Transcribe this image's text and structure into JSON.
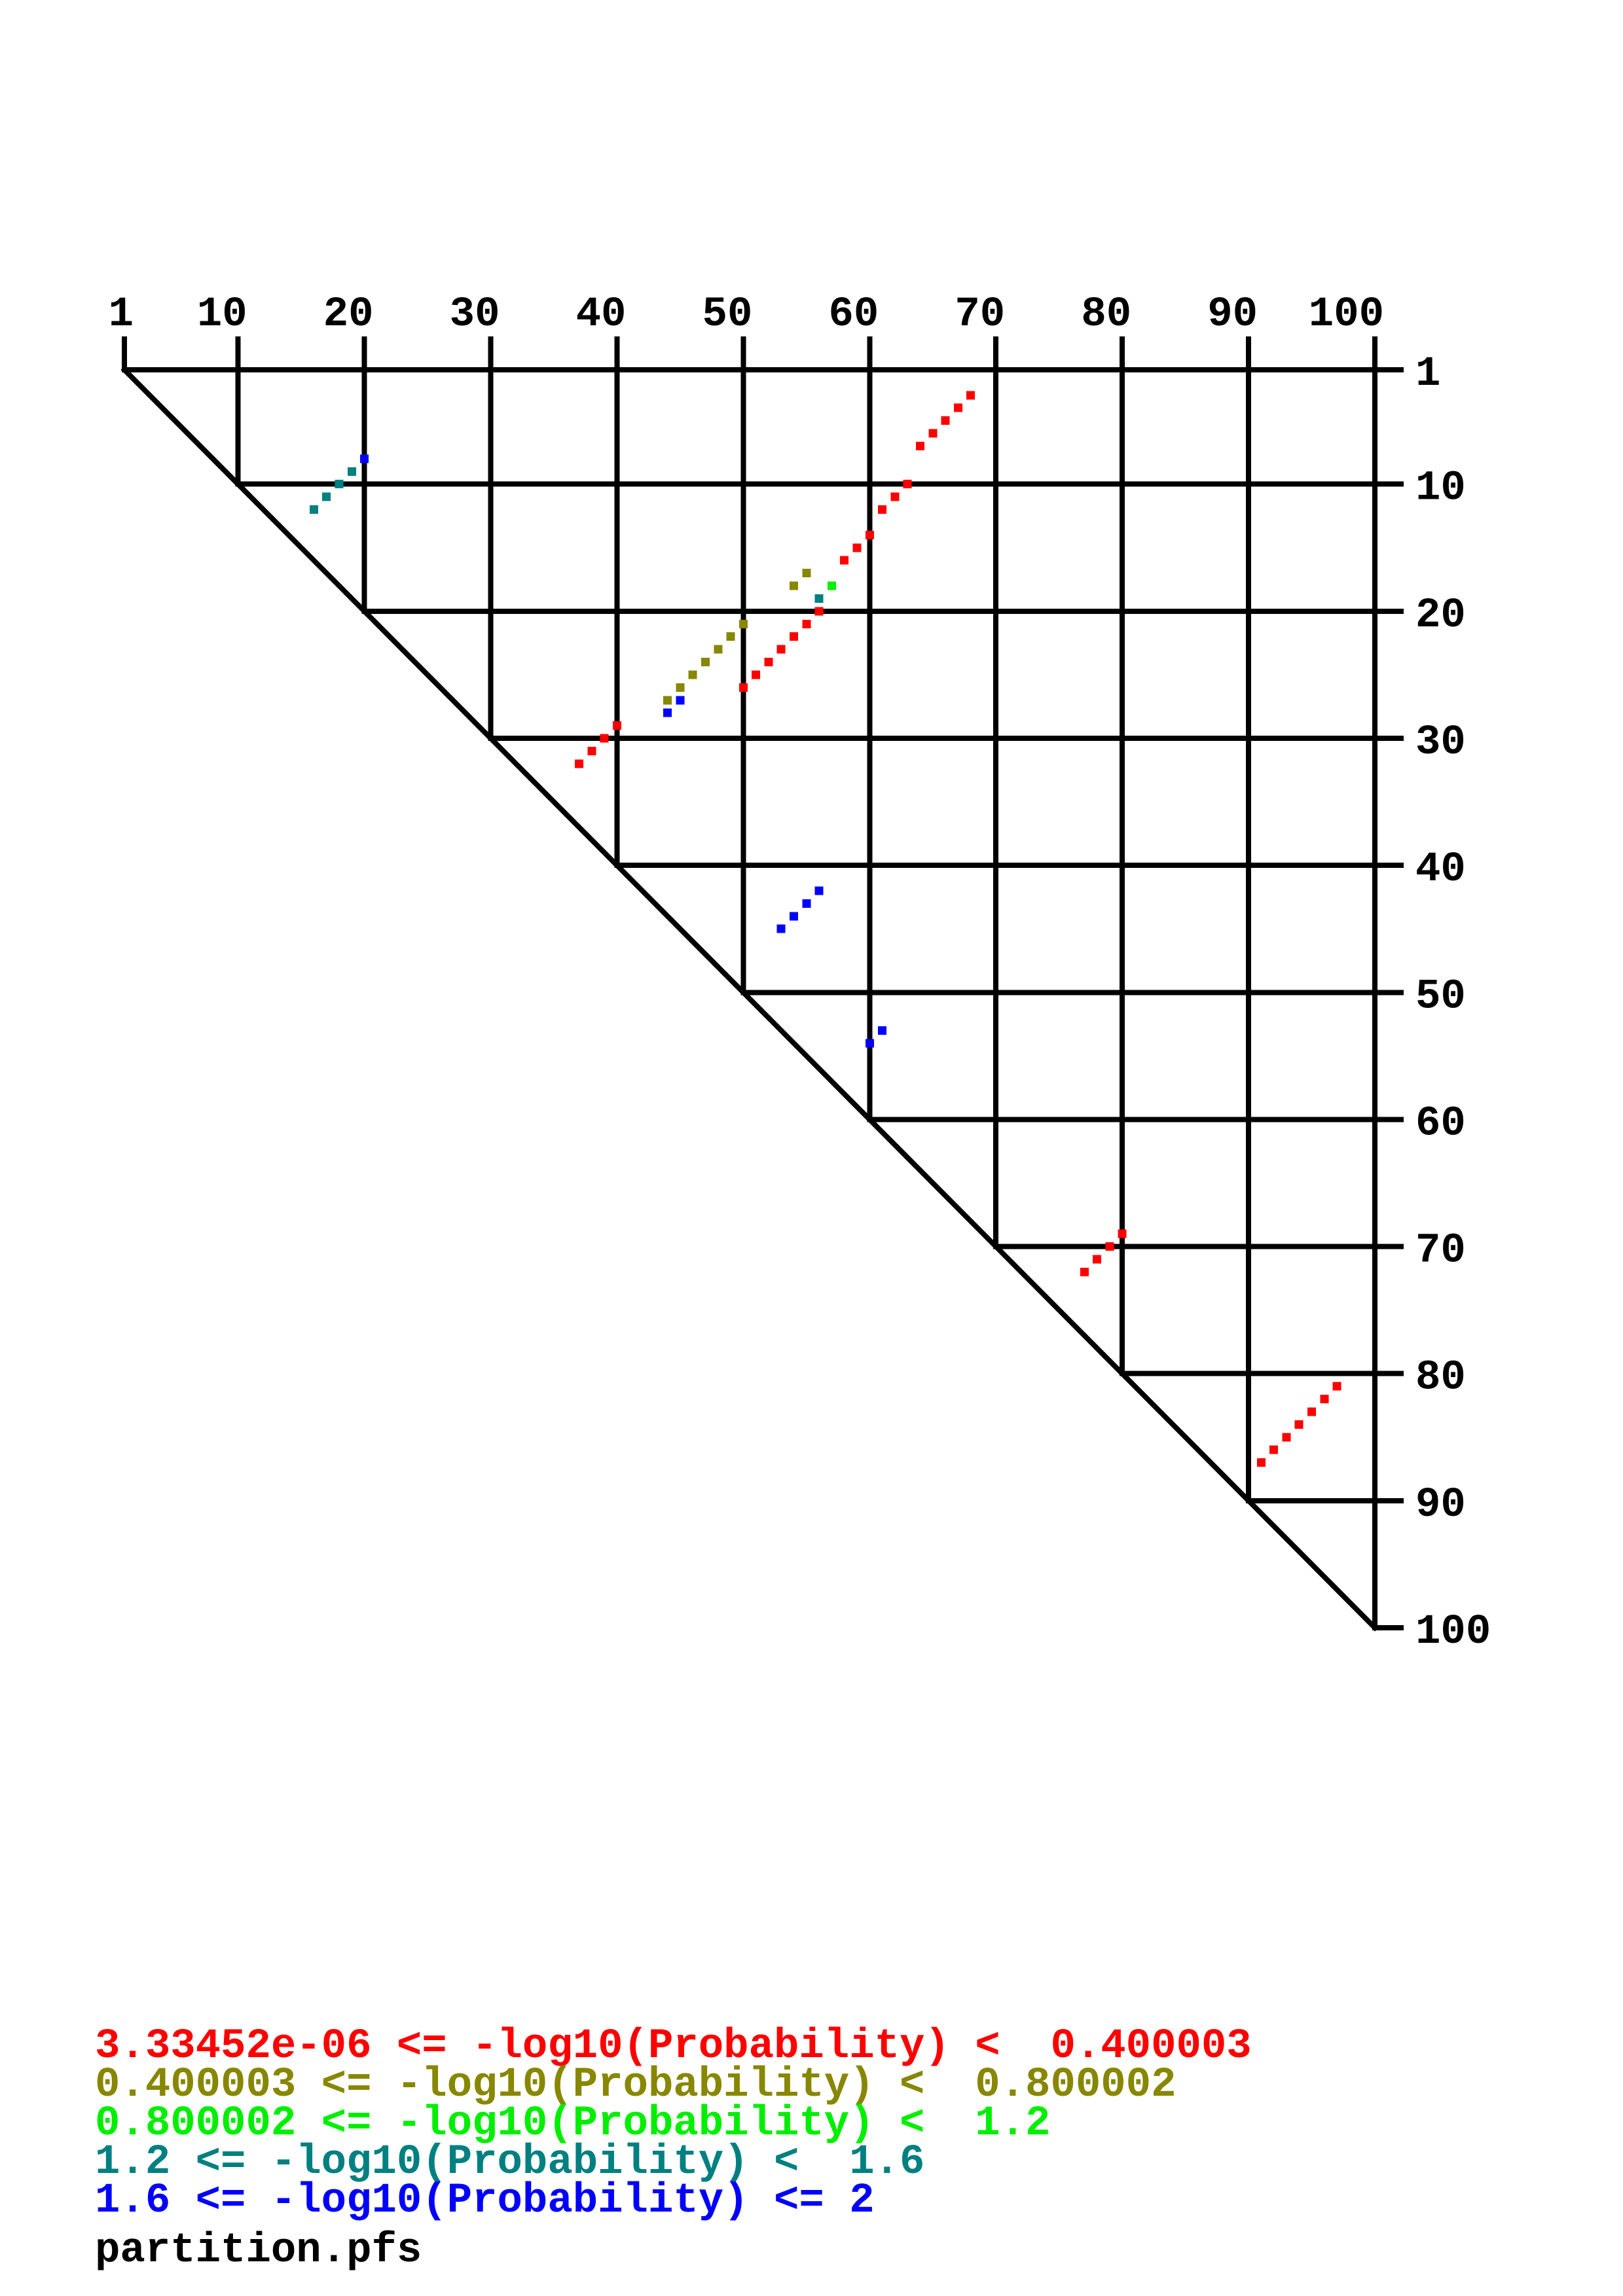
{
  "chart_data": {
    "type": "scatter",
    "title": "",
    "description": "Triangular dotplot of inverted-repeat matches; colored squares classified by -log10(Probability) bands",
    "x_axis": {
      "side": "top",
      "range": [
        1,
        100
      ],
      "ticks": [
        1,
        10,
        20,
        30,
        40,
        50,
        60,
        70,
        80,
        90,
        100
      ],
      "tick_labels": [
        "1",
        "10",
        "20",
        "30",
        "40",
        "50",
        "60",
        "70",
        "80",
        "90",
        "100"
      ]
    },
    "y_axis": {
      "side": "right",
      "range": [
        1,
        100
      ],
      "direction": "down",
      "ticks": [
        1,
        10,
        20,
        30,
        40,
        50,
        60,
        70,
        80,
        90,
        100
      ],
      "tick_labels": [
        "1",
        "10",
        "20",
        "30",
        "40",
        "50",
        "60",
        "70",
        "80",
        "90",
        "100"
      ]
    },
    "grid": true,
    "plot_shape": "upper triangle with diagonal from (1,1) to (100,100)",
    "bands": [
      {
        "key": "band1",
        "color": "#ff0000",
        "label": "3.33452e-06 <= -log10(Probability) <  0.400003"
      },
      {
        "key": "band2",
        "color": "#878700",
        "label": "0.400003 <= -log10(Probability) <  0.800002"
      },
      {
        "key": "band3",
        "color": "#00ee00",
        "label": "0.800002 <= -log10(Probability) <  1.2"
      },
      {
        "key": "band4",
        "color": "#008080",
        "label": "1.2 <= -log10(Probability) <  1.6"
      },
      {
        "key": "band5",
        "color": "#0000ff",
        "label": "1.6 <= -log10(Probability) <= 2"
      }
    ],
    "points": [
      {
        "x": 68,
        "y": 3,
        "band": 1
      },
      {
        "x": 67,
        "y": 4,
        "band": 1
      },
      {
        "x": 66,
        "y": 5,
        "band": 1
      },
      {
        "x": 65,
        "y": 6,
        "band": 1
      },
      {
        "x": 64,
        "y": 7,
        "band": 1
      },
      {
        "x": 63,
        "y": 10,
        "band": 1
      },
      {
        "x": 62,
        "y": 11,
        "band": 1
      },
      {
        "x": 61,
        "y": 12,
        "band": 1
      },
      {
        "x": 60,
        "y": 14,
        "band": 1
      },
      {
        "x": 59,
        "y": 15,
        "band": 1
      },
      {
        "x": 58,
        "y": 16,
        "band": 1
      },
      {
        "x": 20,
        "y": 8,
        "band": 5
      },
      {
        "x": 19,
        "y": 9,
        "band": 4
      },
      {
        "x": 18,
        "y": 10,
        "band": 4
      },
      {
        "x": 17,
        "y": 11,
        "band": 4
      },
      {
        "x": 16,
        "y": 12,
        "band": 4
      },
      {
        "x": 55,
        "y": 17,
        "band": 2
      },
      {
        "x": 54,
        "y": 18,
        "band": 2
      },
      {
        "x": 57,
        "y": 18,
        "band": 3
      },
      {
        "x": 56,
        "y": 19,
        "band": 4
      },
      {
        "x": 56,
        "y": 20,
        "band": 1
      },
      {
        "x": 55,
        "y": 21,
        "band": 1
      },
      {
        "x": 54,
        "y": 22,
        "band": 1
      },
      {
        "x": 53,
        "y": 23,
        "band": 1
      },
      {
        "x": 52,
        "y": 24,
        "band": 1
      },
      {
        "x": 51,
        "y": 25,
        "band": 1
      },
      {
        "x": 50,
        "y": 26,
        "band": 1
      },
      {
        "x": 50,
        "y": 21,
        "band": 2
      },
      {
        "x": 49,
        "y": 22,
        "band": 2
      },
      {
        "x": 48,
        "y": 23,
        "band": 2
      },
      {
        "x": 47,
        "y": 24,
        "band": 2
      },
      {
        "x": 46,
        "y": 25,
        "band": 2
      },
      {
        "x": 45,
        "y": 26,
        "band": 2
      },
      {
        "x": 44,
        "y": 27,
        "band": 2
      },
      {
        "x": 45,
        "y": 27,
        "band": 5
      },
      {
        "x": 44,
        "y": 28,
        "band": 5
      },
      {
        "x": 40,
        "y": 29,
        "band": 1
      },
      {
        "x": 39,
        "y": 30,
        "band": 1
      },
      {
        "x": 38,
        "y": 31,
        "band": 1
      },
      {
        "x": 37,
        "y": 32,
        "band": 1
      },
      {
        "x": 56,
        "y": 42,
        "band": 5
      },
      {
        "x": 55,
        "y": 43,
        "band": 5
      },
      {
        "x": 54,
        "y": 44,
        "band": 5
      },
      {
        "x": 53,
        "y": 45,
        "band": 5
      },
      {
        "x": 61,
        "y": 53,
        "band": 5
      },
      {
        "x": 60,
        "y": 54,
        "band": 5
      },
      {
        "x": 80,
        "y": 69,
        "band": 1
      },
      {
        "x": 79,
        "y": 70,
        "band": 1
      },
      {
        "x": 78,
        "y": 71,
        "band": 1
      },
      {
        "x": 77,
        "y": 72,
        "band": 1
      },
      {
        "x": 97,
        "y": 81,
        "band": 1
      },
      {
        "x": 96,
        "y": 82,
        "band": 1
      },
      {
        "x": 95,
        "y": 83,
        "band": 1
      },
      {
        "x": 94,
        "y": 84,
        "band": 1
      },
      {
        "x": 93,
        "y": 85,
        "band": 1
      },
      {
        "x": 92,
        "y": 86,
        "band": 1
      },
      {
        "x": 91,
        "y": 87,
        "band": 1
      }
    ]
  },
  "legend": {
    "footer": {
      "text": "partition.pfs",
      "color": "#000000"
    }
  }
}
